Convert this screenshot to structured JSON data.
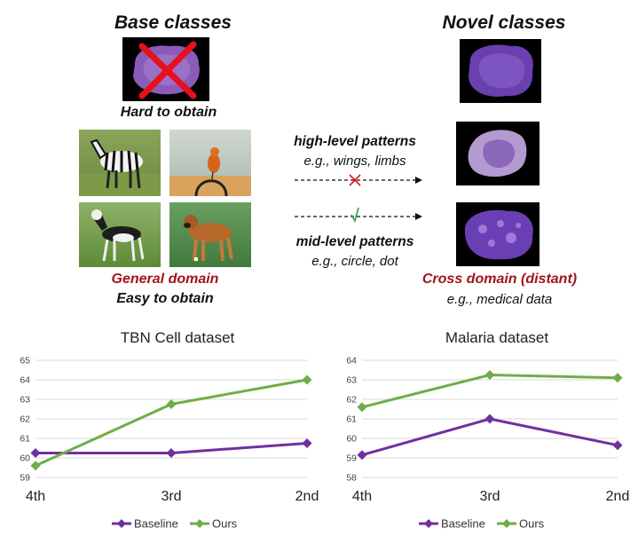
{
  "base": {
    "title": "Base classes",
    "hard_label": "Hard to obtain",
    "domain_label": "General domain",
    "easy_label": "Easy to obtain"
  },
  "novel": {
    "title": "Novel classes",
    "domain_label": "Cross domain (distant)",
    "example_label": "e.g., medical data"
  },
  "patterns": {
    "high_title": "high-level patterns",
    "high_example": "e.g., wings, limbs",
    "mid_title": "mid-level patterns",
    "mid_example": "e.g., circle, dot"
  },
  "icons": {
    "cross": "red-cross-icon",
    "check": "green-check-icon"
  },
  "colors": {
    "red_label": "#a0141a",
    "baseline": "#7030a0",
    "ours": "#70ad47",
    "cross": "#e8101a",
    "check": "#2e9e56"
  },
  "chart_data": [
    {
      "type": "line",
      "title": "TBN Cell dataset",
      "categories": [
        "4th",
        "3rd",
        "2nd"
      ],
      "ylim": [
        59,
        65
      ],
      "yticks": [
        59,
        60,
        61,
        62,
        63,
        64,
        65
      ],
      "grid": true,
      "legend": "bottom",
      "series": [
        {
          "name": "Baseline",
          "values": [
            60.25,
            60.25,
            60.75
          ]
        },
        {
          "name": "Ours",
          "values": [
            59.6,
            62.75,
            64.0
          ]
        }
      ]
    },
    {
      "type": "line",
      "title": "Malaria dataset",
      "categories": [
        "4th",
        "3rd",
        "2nd"
      ],
      "ylim": [
        58,
        64
      ],
      "yticks": [
        58,
        59,
        60,
        61,
        62,
        63,
        64
      ],
      "grid": true,
      "legend": "bottom",
      "series": [
        {
          "name": "Baseline",
          "values": [
            59.15,
            61.0,
            59.65
          ]
        },
        {
          "name": "Ours",
          "values": [
            61.6,
            63.25,
            63.1
          ]
        }
      ]
    }
  ]
}
